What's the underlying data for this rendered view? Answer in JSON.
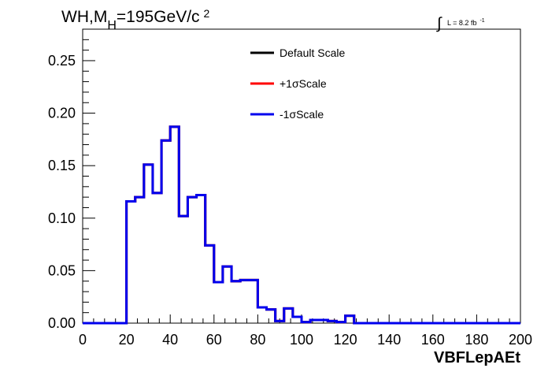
{
  "chart_data": {
    "type": "line",
    "style": "step-histogram",
    "title_parts": {
      "base": "WH,M",
      "sub": "H",
      "rest": "=195GeV/c",
      "sup": "2"
    },
    "lumi_label": {
      "integral": "∫",
      "text": "L = 8.2 fb",
      "sup": "-1"
    },
    "xlabel": "VBFLepAEt",
    "ylabel": "",
    "xlim": [
      0,
      200
    ],
    "ylim": [
      0,
      0.28
    ],
    "xticks": [
      0,
      20,
      40,
      60,
      80,
      100,
      120,
      140,
      160,
      180,
      200
    ],
    "xtick_labels": [
      "0",
      "20",
      "40",
      "60",
      "80",
      "100",
      "120",
      "140",
      "160",
      "180",
      "200"
    ],
    "yticks": [
      0,
      0.05,
      0.1,
      0.15,
      0.2,
      0.25
    ],
    "ytick_labels": [
      "0.00",
      "0.05",
      "0.10",
      "0.15",
      "0.20",
      "0.25"
    ],
    "grid": false,
    "legend_position": "top-center",
    "bin_edges": [
      0,
      4,
      8,
      12,
      16,
      20,
      24,
      28,
      32,
      36,
      40,
      44,
      48,
      52,
      56,
      60,
      64,
      68,
      72,
      76,
      80,
      84,
      88,
      92,
      96,
      100,
      104,
      108,
      112,
      116,
      120,
      124,
      128,
      132,
      136,
      140,
      144,
      148,
      152,
      156,
      160,
      164,
      168,
      172,
      176,
      180,
      184,
      188,
      192,
      196,
      200
    ],
    "series": [
      {
        "name": "Default Scale",
        "color": "#000000",
        "values": [
          0,
          0,
          0,
          0,
          0,
          0.116,
          0.12,
          0.151,
          0.124,
          0.174,
          0.187,
          0.102,
          0.12,
          0.122,
          0.074,
          0.039,
          0.054,
          0.04,
          0.041,
          0.041,
          0.015,
          0.013,
          0.002,
          0.014,
          0.006,
          0.001,
          0.003,
          0.003,
          0.002,
          0.001,
          0.007,
          0,
          0,
          0,
          0,
          0,
          0,
          0,
          0,
          0,
          0,
          0,
          0,
          0,
          0,
          0,
          0,
          0,
          0,
          0
        ]
      },
      {
        "name": "+1σScale",
        "color": "#ff0000",
        "values": [
          0,
          0,
          0,
          0,
          0,
          0.116,
          0.12,
          0.151,
          0.124,
          0.174,
          0.187,
          0.102,
          0.12,
          0.122,
          0.074,
          0.039,
          0.054,
          0.04,
          0.041,
          0.041,
          0.015,
          0.013,
          0.002,
          0.014,
          0.006,
          0.001,
          0.003,
          0.003,
          0.002,
          0.001,
          0.007,
          0,
          0,
          0,
          0,
          0,
          0,
          0,
          0,
          0,
          0,
          0,
          0,
          0,
          0,
          0,
          0,
          0,
          0,
          0
        ]
      },
      {
        "name": "-1σScale",
        "color": "#0000ee",
        "values": [
          0,
          0,
          0,
          0,
          0,
          0.116,
          0.12,
          0.151,
          0.124,
          0.174,
          0.187,
          0.102,
          0.12,
          0.122,
          0.074,
          0.039,
          0.054,
          0.04,
          0.041,
          0.041,
          0.015,
          0.013,
          0.002,
          0.014,
          0.006,
          0.001,
          0.003,
          0.003,
          0.002,
          0.001,
          0.007,
          0,
          0,
          0,
          0,
          0,
          0,
          0,
          0,
          0,
          0,
          0,
          0,
          0,
          0,
          0,
          0,
          0,
          0,
          0
        ]
      }
    ]
  }
}
